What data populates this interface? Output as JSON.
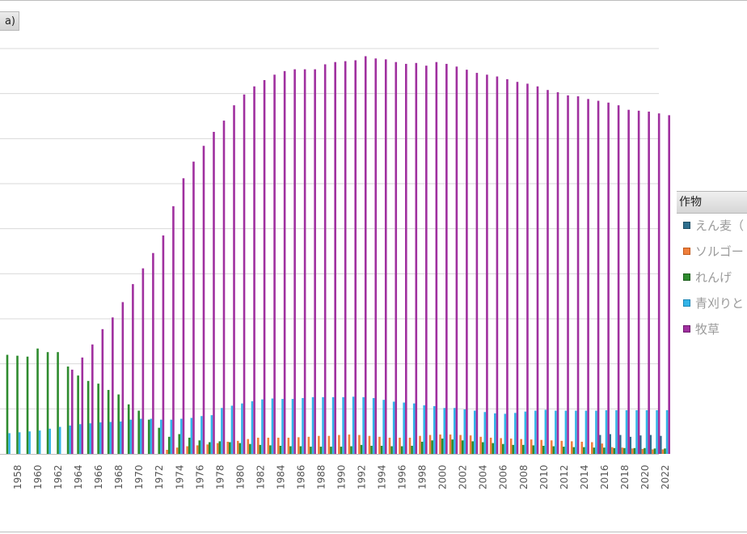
{
  "y_axis_label_fragment": "a)",
  "legend": {
    "title": "作物",
    "items": [
      {
        "label": "えん麦（",
        "color": "#2e6f8e",
        "border": "#1f4f66"
      },
      {
        "label": "ソルゴー",
        "color": "#f07f3c",
        "border": "#c05a1c"
      },
      {
        "label": "れんげ",
        "color": "#2e8b2e",
        "border": "#1e5e1e"
      },
      {
        "label": "青刈りと",
        "color": "#33b4e8",
        "border": "#1d86b5"
      },
      {
        "label": "牧草",
        "color": "#a0309f",
        "border": "#6e1a6e"
      }
    ]
  },
  "chart_data": {
    "type": "bar",
    "title": "",
    "xlabel": "",
    "ylabel": "",
    "grid": true,
    "legend_position": "right",
    "years": [
      1957,
      1958,
      1959,
      1960,
      1961,
      1962,
      1963,
      1964,
      1965,
      1966,
      1967,
      1968,
      1969,
      1970,
      1971,
      1972,
      1973,
      1974,
      1975,
      1976,
      1977,
      1978,
      1979,
      1980,
      1981,
      1982,
      1983,
      1984,
      1985,
      1986,
      1987,
      1988,
      1989,
      1990,
      1991,
      1992,
      1993,
      1994,
      1995,
      1996,
      1997,
      1998,
      1999,
      2000,
      2001,
      2002,
      2003,
      2004,
      2005,
      2006,
      2007,
      2008,
      2009,
      2010,
      2011,
      2012,
      2013,
      2014,
      2015,
      2016,
      2017,
      2018,
      2019,
      2020,
      2021,
      2022
    ],
    "x_tick_labels": [
      "1958",
      "1960",
      "1962",
      "1964",
      "1966",
      "1968",
      "1970",
      "1972",
      "1974",
      "1976",
      "1978",
      "1980",
      "1982",
      "1984",
      "1986",
      "1988",
      "1990",
      "1992",
      "1994",
      "1996",
      "1998",
      "2000",
      "2002",
      "2004",
      "2006",
      "2008",
      "2010",
      "2012",
      "2014",
      "2016",
      "2018",
      "2020",
      "2022"
    ],
    "series": [
      {
        "name": "えん麦（",
        "color": "#2e6f8e",
        "values": [
          0,
          0,
          0,
          0,
          0,
          0,
          0,
          0,
          0,
          0,
          0,
          0,
          0,
          0,
          0,
          0,
          0,
          0,
          0,
          0,
          0,
          0,
          0,
          0,
          0,
          0,
          0,
          0,
          0,
          0,
          0,
          0,
          0,
          0,
          0,
          0,
          0,
          0,
          0,
          0,
          0,
          0,
          0,
          0,
          0,
          0,
          0,
          0,
          0,
          0,
          0,
          0,
          0,
          0,
          0,
          0,
          0,
          0,
          0,
          4.2,
          4.4,
          4.2,
          3.8,
          4.1,
          4.2,
          4.0
        ]
      },
      {
        "name": "ソルゴー",
        "color": "#f07f3c",
        "values": [
          0,
          0,
          0,
          0,
          0,
          0,
          0,
          0,
          0,
          0,
          0,
          0,
          0,
          0,
          0,
          0,
          0.9,
          1.4,
          1.7,
          1.9,
          2.1,
          2.4,
          2.7,
          2.9,
          3.3,
          3.6,
          3.6,
          3.6,
          3.6,
          3.7,
          3.8,
          4.0,
          4.0,
          4.2,
          4.3,
          4.2,
          4.0,
          3.8,
          3.6,
          3.6,
          3.6,
          4.0,
          4.2,
          4.3,
          4.3,
          4.2,
          4.1,
          3.8,
          3.6,
          3.5,
          3.4,
          3.3,
          3.2,
          3.1,
          3.0,
          2.9,
          2.8,
          2.7,
          2.6,
          2.3,
          1.5,
          1.4,
          1.2,
          1.1,
          1.0,
          1.0
        ]
      },
      {
        "name": "れんげ",
        "color": "#2e8b2e",
        "values": [
          22.0,
          21.8,
          21.6,
          23.4,
          22.6,
          22.6,
          19.4,
          17.4,
          16.2,
          15.6,
          14.2,
          13.2,
          11.0,
          9.6,
          7.6,
          5.8,
          3.8,
          4.4,
          3.6,
          3.0,
          2.6,
          2.8,
          2.6,
          2.4,
          2.2,
          2.0,
          1.9,
          1.8,
          1.7,
          1.7,
          1.6,
          1.6,
          1.6,
          1.6,
          1.7,
          2.0,
          1.8,
          1.8,
          1.7,
          1.7,
          1.8,
          2.7,
          3.0,
          3.4,
          3.2,
          3.0,
          2.8,
          2.6,
          2.4,
          2.2,
          2.0,
          2.0,
          1.9,
          1.8,
          1.7,
          1.6,
          1.5,
          1.5,
          1.4,
          1.4,
          1.3,
          1.3,
          1.3,
          1.3,
          1.2,
          1.2
        ]
      },
      {
        "name": "青刈りと",
        "color": "#33b4e8",
        "values": [
          4.6,
          4.8,
          5.0,
          5.2,
          5.6,
          6.0,
          6.3,
          6.6,
          6.8,
          7.0,
          7.1,
          7.2,
          7.6,
          7.8,
          7.8,
          7.6,
          7.6,
          7.8,
          8.0,
          8.4,
          8.6,
          10.2,
          10.7,
          11.2,
          11.7,
          12.1,
          12.3,
          12.2,
          12.2,
          12.4,
          12.6,
          12.6,
          12.6,
          12.6,
          12.7,
          12.6,
          12.4,
          12.0,
          11.6,
          11.4,
          11.2,
          10.8,
          10.6,
          10.2,
          10.2,
          9.9,
          9.6,
          9.3,
          9.0,
          8.9,
          9.1,
          9.4,
          9.6,
          9.8,
          9.6,
          9.6,
          9.6,
          9.6,
          9.6,
          9.7,
          9.7,
          9.7,
          9.7,
          9.7,
          9.7,
          9.7
        ]
      },
      {
        "name": "牧草",
        "color": "#a0309f",
        "values": [
          0,
          0,
          0,
          0,
          0,
          0,
          18.7,
          21.4,
          24.3,
          27.7,
          30.3,
          33.7,
          37.7,
          41.2,
          44.6,
          48.5,
          55.0,
          61.2,
          64.9,
          68.4,
          71.5,
          74.0,
          77.4,
          79.8,
          81.6,
          83.0,
          84.2,
          85.0,
          85.4,
          85.4,
          85.4,
          86.5,
          87.0,
          87.2,
          87.4,
          88.3,
          87.8,
          87.6,
          87.0,
          86.6,
          86.8,
          86.2,
          87.0,
          86.6,
          86.0,
          85.3,
          84.6,
          84.2,
          83.8,
          83.2,
          82.6,
          82.2,
          81.6,
          80.8,
          80.3,
          79.6,
          79.4,
          78.8,
          78.4,
          78.0,
          77.4,
          76.4,
          76.2,
          76.0,
          75.6,
          75.2
        ]
      }
    ]
  }
}
